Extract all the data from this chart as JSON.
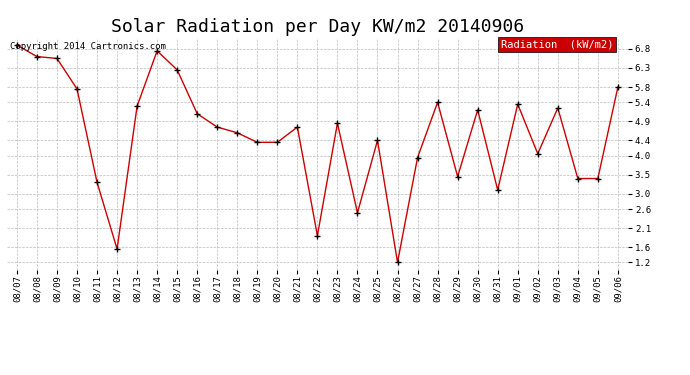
{
  "title": "Solar Radiation per Day KW/m2 20140906",
  "copyright": "Copyright 2014 Cartronics.com",
  "legend_label": "Radiation  (kW/m2)",
  "dates": [
    "08/07",
    "08/08",
    "08/09",
    "08/10",
    "08/11",
    "08/12",
    "08/13",
    "08/14",
    "08/15",
    "08/16",
    "08/17",
    "08/18",
    "08/19",
    "08/20",
    "08/21",
    "08/22",
    "08/23",
    "08/24",
    "08/25",
    "08/26",
    "08/27",
    "08/28",
    "08/29",
    "08/30",
    "08/31",
    "09/01",
    "09/02",
    "09/03",
    "09/04",
    "09/05",
    "09/06"
  ],
  "values": [
    6.9,
    6.6,
    6.55,
    5.75,
    3.3,
    1.55,
    5.3,
    6.75,
    6.25,
    5.1,
    4.75,
    4.6,
    4.35,
    4.35,
    4.75,
    1.9,
    4.85,
    2.5,
    4.4,
    1.2,
    3.95,
    5.4,
    3.45,
    5.2,
    3.1,
    5.35,
    4.05,
    5.25,
    3.4,
    3.4,
    5.8
  ],
  "line_color": "#cc0000",
  "marker_color": "#000000",
  "background_color": "#ffffff",
  "grid_color": "#bbbbbb",
  "legend_bg": "#cc0000",
  "legend_text_color": "#ffffff",
  "ylim_min": 1.0,
  "ylim_max": 7.1,
  "yticks": [
    1.2,
    1.6,
    2.1,
    2.6,
    3.0,
    3.5,
    4.0,
    4.4,
    4.9,
    5.4,
    5.8,
    6.3,
    6.8
  ],
  "title_fontsize": 13,
  "copyright_fontsize": 6.5,
  "tick_fontsize": 6.5,
  "legend_fontsize": 7.5
}
